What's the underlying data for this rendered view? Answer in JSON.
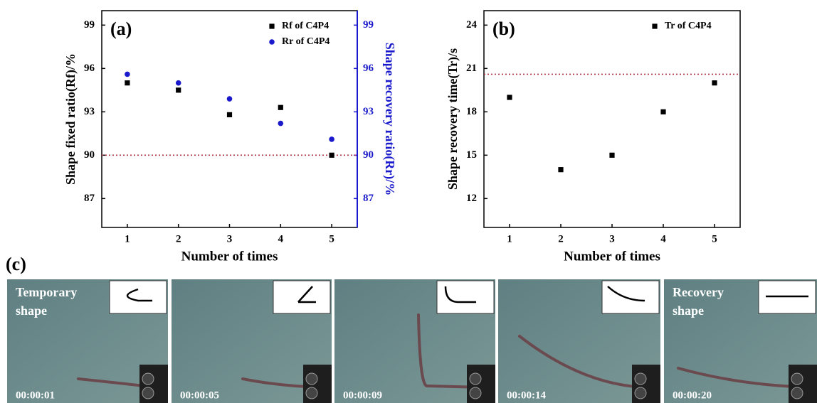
{
  "chart_data": [
    {
      "type": "scatter",
      "panel_label": "(a)",
      "xlabel": "Number of times",
      "ylabel": "Shape fixed ratio(Rf)/%",
      "y2label": "Shape recovery ratio(Rr)/%",
      "x": [
        1,
        2,
        3,
        4,
        5
      ],
      "xlim": [
        0.5,
        5.5
      ],
      "xticks": [
        1,
        2,
        3,
        4,
        5
      ],
      "ylim": [
        85,
        100
      ],
      "yticks": [
        87,
        90,
        93,
        96,
        99
      ],
      "y2lim": [
        85,
        100
      ],
      "y2ticks": [
        87,
        90,
        93,
        96,
        99
      ],
      "y2color": "#1a1acc",
      "reference_line": 90,
      "reference_color": "#b03040",
      "legend": "top-right",
      "series": [
        {
          "name": "Rf of C4P4",
          "color": "#000000",
          "marker": "square",
          "values": [
            95.0,
            94.5,
            92.8,
            93.3,
            90.0
          ]
        },
        {
          "name": "Rr of C4P4",
          "color": "#1a1acc",
          "marker": "circle",
          "axis": "y2",
          "values": [
            95.6,
            95.0,
            93.9,
            92.2,
            91.1
          ]
        }
      ]
    },
    {
      "type": "scatter",
      "panel_label": "(b)",
      "xlabel": "Number of times",
      "ylabel": "Shape recovery time(Tr)/s",
      "x": [
        1,
        2,
        3,
        4,
        5
      ],
      "xlim": [
        0.5,
        5.5
      ],
      "xticks": [
        1,
        2,
        3,
        4,
        5
      ],
      "ylim": [
        10,
        25
      ],
      "yticks": [
        12,
        15,
        18,
        21,
        24
      ],
      "reference_line": 20.6,
      "reference_color": "#b03040",
      "legend": "top-right",
      "series": [
        {
          "name": "Tr of C4P4",
          "color": "#000000",
          "marker": "square",
          "values": [
            19,
            14,
            15,
            18,
            20
          ]
        }
      ]
    }
  ],
  "figure_c": {
    "label": "(c)",
    "frames": [
      {
        "caption": "Temporary shape",
        "time": "00:00:01"
      },
      {
        "time": "00:00:05"
      },
      {
        "time": "00:00:09"
      },
      {
        "time": "00:00:14"
      },
      {
        "caption": "Recovery shape",
        "time": "00:00:20"
      }
    ]
  }
}
